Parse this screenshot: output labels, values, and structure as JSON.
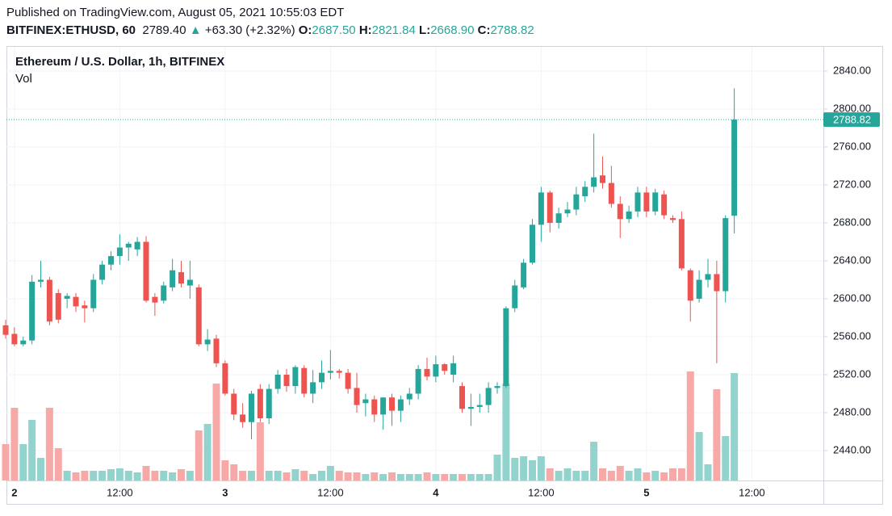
{
  "header": {
    "published": "Published on TradingView.com, August 05, 2021 10:55:03 EDT",
    "symbol": "BITFINEX:ETHUSD, 60",
    "price": "2789.40",
    "arrow": "▲",
    "change": "+63.30 (+2.32%)",
    "o_label": "O:",
    "open": "2687.50",
    "h_label": "H:",
    "high": "2821.84",
    "l_label": "L:",
    "low": "2668.90",
    "c_label": "C:",
    "close": "2788.82"
  },
  "chart_data": {
    "type": "candlestick",
    "title": "Ethereum / U.S. Dollar, 1h, BITFINEX",
    "subtitle": "Vol",
    "categories": [
      null,
      "2",
      null,
      null,
      null,
      null,
      null,
      null,
      null,
      null,
      null,
      null,
      null,
      "12:00",
      null,
      null,
      null,
      null,
      null,
      null,
      null,
      null,
      null,
      null,
      null,
      "3",
      null,
      null,
      null,
      null,
      null,
      null,
      null,
      null,
      null,
      null,
      null,
      "12:00",
      null,
      null,
      null,
      null,
      null,
      null,
      null,
      null,
      null,
      null,
      null,
      "4",
      null,
      null,
      null,
      null,
      null,
      null,
      null,
      null,
      null,
      null,
      null,
      "12:00",
      null,
      null,
      null,
      null,
      null,
      null,
      null,
      null,
      null,
      null,
      null,
      "5",
      null,
      null,
      null,
      null,
      null,
      null,
      null,
      null,
      null,
      null,
      null,
      "12:00"
    ],
    "open": [
      2572,
      2563,
      2552,
      2556,
      2618,
      2620,
      2606,
      2600,
      2602,
      2593,
      2590,
      2620,
      2636,
      2645,
      2654,
      2652,
      2660,
      2602,
      2598,
      2612,
      2628,
      2614,
      2612,
      2552,
      2558,
      2532,
      2500,
      2478,
      2470,
      2505,
      2474,
      2505,
      2520,
      2508,
      2527,
      2500,
      2512,
      2522,
      2524,
      2522,
      2506,
      2490,
      2494,
      2478,
      2496,
      2482,
      2494,
      2500,
      2526,
      2518,
      2531,
      2520,
      2508,
      2484,
      2486,
      2488,
      2506,
      2508,
      2590,
      2612,
      2638,
      2678,
      2712,
      2680,
      2690,
      2694,
      2708,
      2718,
      2730,
      2722,
      2700,
      2684,
      2692,
      2712,
      2692,
      2710,
      2685,
      2684,
      2630,
      2600,
      2620,
      2626,
      2608,
      2687.5,
      null,
      null
    ],
    "high": [
      2578,
      2570,
      2560,
      2625,
      2640,
      2623,
      2610,
      2606,
      2606,
      2598,
      2626,
      2640,
      2650,
      2668,
      2660,
      2665,
      2666,
      2606,
      2618,
      2642,
      2640,
      2640,
      2615,
      2568,
      2562,
      2535,
      2505,
      2490,
      2503,
      2510,
      2510,
      2525,
      2526,
      2530,
      2530,
      2525,
      2535,
      2546,
      2526,
      2526,
      2522,
      2500,
      2498,
      2496,
      2500,
      2498,
      2506,
      2530,
      2538,
      2540,
      2532,
      2540,
      2512,
      2500,
      2500,
      2512,
      2512,
      2592,
      2620,
      2642,
      2684,
      2718,
      2714,
      2696,
      2702,
      2718,
      2724,
      2774,
      2750,
      2740,
      2708,
      2698,
      2718,
      2718,
      2716,
      2714,
      2688,
      2692,
      2632,
      2630,
      2642,
      2640,
      2688,
      2821.84,
      null,
      null
    ],
    "low": [
      2558,
      2550,
      2550,
      2552,
      2612,
      2572,
      2574,
      2590,
      2586,
      2575,
      2586,
      2615,
      2630,
      2636,
      2640,
      2645,
      2596,
      2582,
      2595,
      2608,
      2612,
      2600,
      2550,
      2545,
      2528,
      2498,
      2472,
      2464,
      2452,
      2470,
      2468,
      2500,
      2502,
      2500,
      2496,
      2490,
      2505,
      2515,
      2516,
      2500,
      2480,
      2476,
      2470,
      2462,
      2466,
      2470,
      2488,
      2494,
      2514,
      2512,
      2520,
      2512,
      2480,
      2466,
      2480,
      2480,
      2500,
      2506,
      2586,
      2610,
      2636,
      2660,
      2670,
      2674,
      2686,
      2688,
      2702,
      2712,
      2716,
      2696,
      2664,
      2680,
      2686,
      2686,
      2688,
      2684,
      2680,
      2630,
      2576,
      2596,
      2612,
      2532,
      2596,
      2668.9,
      null,
      null
    ],
    "close": [
      2562,
      2552,
      2556,
      2618,
      2620,
      2576,
      2578,
      2603,
      2592,
      2590,
      2620,
      2636,
      2645,
      2654,
      2658,
      2660,
      2598,
      2596,
      2614,
      2630,
      2616,
      2620,
      2552,
      2557,
      2532,
      2500,
      2478,
      2470,
      2500,
      2474,
      2505,
      2520,
      2508,
      2528,
      2500,
      2512,
      2522,
      2524,
      2522,
      2505,
      2488,
      2494,
      2478,
      2496,
      2482,
      2494,
      2500,
      2526,
      2518,
      2531,
      2524,
      2532,
      2484,
      2486,
      2488,
      2506,
      2508,
      2590,
      2614,
      2638,
      2678,
      2712,
      2680,
      2690,
      2694,
      2710,
      2718,
      2728,
      2722,
      2700,
      2684,
      2692,
      2712,
      2692,
      2712,
      2688,
      2683,
      2632,
      2598,
      2620,
      2626,
      2608,
      2685,
      2788.82,
      null,
      null
    ],
    "volume": [
      45,
      90,
      45,
      75,
      28,
      90,
      40,
      12,
      10,
      12,
      12,
      12,
      14,
      15,
      12,
      10,
      18,
      12,
      12,
      10,
      14,
      12,
      62,
      70,
      120,
      25,
      20,
      12,
      12,
      72,
      12,
      12,
      10,
      14,
      12,
      8,
      12,
      18,
      12,
      10,
      10,
      8,
      10,
      8,
      10,
      8,
      8,
      8,
      10,
      8,
      8,
      8,
      8,
      8,
      8,
      8,
      32,
      120,
      28,
      30,
      25,
      30,
      15,
      12,
      15,
      12,
      12,
      48,
      15,
      12,
      18,
      12,
      15,
      10,
      12,
      10,
      15,
      15,
      135,
      60,
      20,
      113,
      55,
      133,
      null,
      null
    ],
    "up_color": "#26a69a",
    "down_color": "#ef5350",
    "volume_up_color": "#93d3cd",
    "volume_down_color": "#f7a9a7",
    "ylim": [
      2408.5,
      2865.5
    ],
    "yticks": [
      {
        "value": 2440,
        "label": "2440.00"
      },
      {
        "value": 2480,
        "label": "2480.00"
      },
      {
        "value": 2520,
        "label": "2520.00"
      },
      {
        "value": 2560,
        "label": "2560.00"
      },
      {
        "value": 2600,
        "label": "2600.00"
      },
      {
        "value": 2640,
        "label": "2640.00"
      },
      {
        "value": 2680,
        "label": "2680.00"
      },
      {
        "value": 2720,
        "label": "2720.00"
      },
      {
        "value": 2760,
        "label": "2760.00"
      },
      {
        "value": 2800,
        "label": "2800.00"
      },
      {
        "value": 2840,
        "label": "2840.00"
      }
    ],
    "grid": true
  }
}
